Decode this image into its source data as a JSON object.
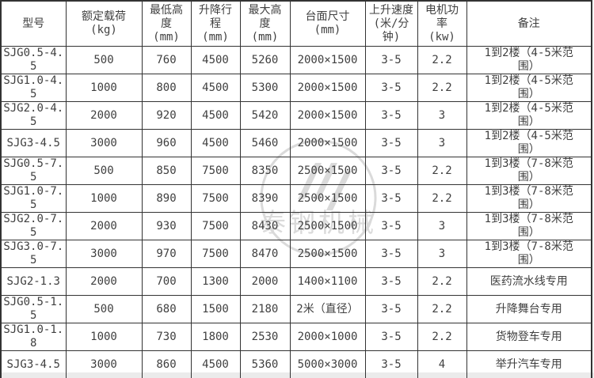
{
  "table": {
    "column_keys": [
      "model",
      "rated-load",
      "min-height",
      "lift-stroke",
      "max-height",
      "platform-size",
      "lift-speed",
      "motor-power",
      "remark"
    ],
    "headers": [
      {
        "label": "型号",
        "unit": ""
      },
      {
        "label": "额定载荷",
        "unit": "(kg)"
      },
      {
        "label": "最低高度",
        "unit": "(mm)"
      },
      {
        "label": "升降行程",
        "unit": "(mm)"
      },
      {
        "label": "最大高度",
        "unit": "(mm)"
      },
      {
        "label": "台面尺寸",
        "unit": "(mm)"
      },
      {
        "label": "上升速度",
        "unit": "(米/分钟)"
      },
      {
        "label": "电机功率",
        "unit": "(kw)"
      },
      {
        "label": "备注",
        "unit": ""
      }
    ],
    "rows": [
      [
        "SJG0.5-4.5",
        "500",
        "760",
        "4500",
        "5260",
        "2000×1500",
        "3-5",
        "2.2",
        "1到2楼（4-5米范围）"
      ],
      [
        "SJG1.0-4.5",
        "1000",
        "800",
        "4500",
        "5300",
        "2000×1500",
        "3-5",
        "2.2",
        "1到2楼（4-5米范围）"
      ],
      [
        "SJG2.0-4.5",
        "2000",
        "920",
        "4500",
        "5420",
        "2000×1500",
        "3-5",
        "3",
        "1到2楼（4-5米范围）"
      ],
      [
        "SJG3-4.5",
        "3000",
        "960",
        "4500",
        "5460",
        "2000×1500",
        "3-5",
        "3",
        "1到2楼（4-5米范围）"
      ],
      [
        "SJG0.5-7.5",
        "500",
        "850",
        "7500",
        "8350",
        "2500×1500",
        "3-5",
        "2.2",
        "1到3楼（7-8米范围）"
      ],
      [
        "SJG1.0-7.5",
        "1000",
        "890",
        "7500",
        "8390",
        "2500×1500",
        "3-5",
        "2.2",
        "1到3楼（7-8米范围）"
      ],
      [
        "SJG2.0-7.5",
        "2000",
        "930",
        "7500",
        "8430",
        "2500×1500",
        "3-5",
        "3",
        "1到3楼（7-8米范围）"
      ],
      [
        "SJG3.0-7.5",
        "3000",
        "970",
        "7500",
        "8470",
        "2500×1500",
        "3-5",
        "3",
        "1到3楼（7-8米范围）"
      ],
      [
        "SJG2-1.3",
        "2000",
        "700",
        "1300",
        "2000",
        "1400×1100",
        "3-5",
        "2.2",
        "医药流水线专用"
      ],
      [
        "SJG0.5-1.5",
        "500",
        "680",
        "1500",
        "2180",
        "2米（直径）",
        "3-5",
        "2.2",
        "升降舞台专用"
      ],
      [
        "SJG1.0-1.8",
        "1000",
        "730",
        "1800",
        "2530",
        "2000×1000",
        "3-5",
        "2.2",
        "货物登车专用"
      ],
      [
        "SJG3-4.5",
        "3000",
        "860",
        "4500",
        "5360",
        "5000×3000",
        "3-5",
        "4",
        "举升汽车专用"
      ]
    ]
  },
  "watermark": {
    "text": "泰钢机械"
  },
  "colors": {
    "border": "#333333",
    "text": "#3f3f3f",
    "watermark": "#dadada",
    "page_bg": "#ffffff",
    "bottom_strip": "#ebebeb"
  }
}
